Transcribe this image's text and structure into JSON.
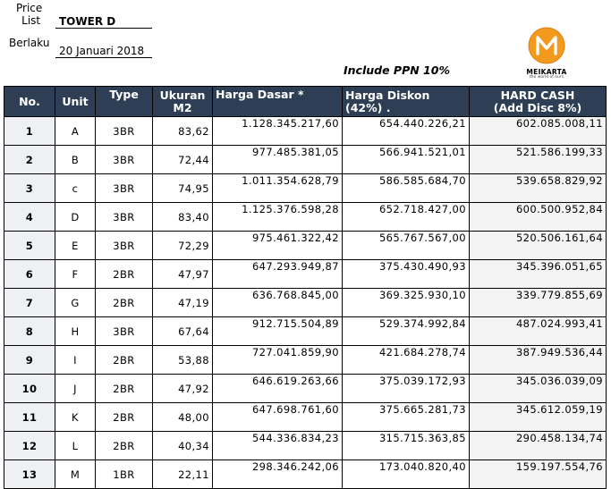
{
  "header": {
    "price_list_label_line1": "Price",
    "price_list_label_line2": "List",
    "tower": "TOWER D",
    "berlaku_label": "Berlaku",
    "date": "20 Januari 2018",
    "note": "Include PPN 10%",
    "logo": {
      "letter": "M",
      "brand": "MEIKARTA",
      "tagline": "the world of ours",
      "color": "#f39a1e"
    }
  },
  "columns": {
    "no": "No.",
    "unit": "Unit",
    "type": "Type",
    "size_line1": "Ukuran",
    "size_line2": "M2",
    "base": "Harga Dasar *",
    "discount_line1": "Harga Diskon",
    "discount_line2": "(42%) .",
    "cash_line1": "HARD CASH",
    "cash_line2": "(Add Disc 8%)"
  },
  "rows": [
    {
      "no": "1",
      "unit": "A",
      "type": "3BR",
      "size": "83,62",
      "base": "1.128.345.217,60",
      "discount": "654.440.226,21",
      "cash": "602.085.008,11"
    },
    {
      "no": "2",
      "unit": "B",
      "type": "3BR",
      "size": "72,44",
      "base": "977.485.381,05",
      "discount": "566.941.521,01",
      "cash": "521.586.199,33"
    },
    {
      "no": "3",
      "unit": "c",
      "type": "3BR",
      "size": "74,95",
      "base": "1.011.354.628,79",
      "discount": "586.585.684,70",
      "cash": "539.658.829,92"
    },
    {
      "no": "4",
      "unit": "D",
      "type": "3BR",
      "size": "83,40",
      "base": "1.125.376.598,28",
      "discount": "652.718.427,00",
      "cash": "600.500.952,84"
    },
    {
      "no": "5",
      "unit": "E",
      "type": "3BR",
      "size": "72,29",
      "base": "975.461.322,42",
      "discount": "565.767.567,00",
      "cash": "520.506.161,64"
    },
    {
      "no": "6",
      "unit": "F",
      "type": "2BR",
      "size": "47,97",
      "base": "647.293.949,87",
      "discount": "375.430.490,93",
      "cash": "345.396.051,65"
    },
    {
      "no": "7",
      "unit": "G",
      "type": "2BR",
      "size": "47,19",
      "base": "636.768.845,00",
      "discount": "369.325.930,10",
      "cash": "339.779.855,69"
    },
    {
      "no": "8",
      "unit": "H",
      "type": "3BR",
      "size": "67,64",
      "base": "912.715.504,89",
      "discount": "529.374.992,84",
      "cash": "487.024.993,41"
    },
    {
      "no": "9",
      "unit": "I",
      "type": "2BR",
      "size": "53,88",
      "base": "727.041.859,90",
      "discount": "421.684.278,74",
      "cash": "387.949.536,44"
    },
    {
      "no": "10",
      "unit": "J",
      "type": "2BR",
      "size": "47,92",
      "base": "646.619.263,66",
      "discount": "375.039.172,93",
      "cash": "345.036.039,09"
    },
    {
      "no": "11",
      "unit": "K",
      "type": "2BR",
      "size": "48,00",
      "base": "647.698.761,60",
      "discount": "375.665.281,73",
      "cash": "345.612.059,19"
    },
    {
      "no": "12",
      "unit": "L",
      "type": "2BR",
      "size": "40,34",
      "base": "544.336.834,23",
      "discount": "315.715.363,85",
      "cash": "290.458.134,74"
    },
    {
      "no": "13",
      "unit": "M",
      "type": "1BR",
      "size": "22,11",
      "base": "298.346.242,06",
      "discount": "173.040.820,40",
      "cash": "159.197.554,76"
    }
  ]
}
